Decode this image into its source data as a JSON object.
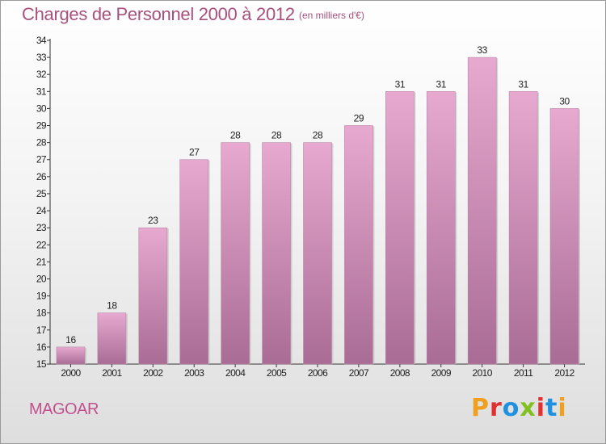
{
  "header": {
    "title": "Charges de Personnel 2000 à 2012",
    "unit": "(en milliers d'€)"
  },
  "footer": {
    "commune": "MAGOAR",
    "logo": "Proxiti",
    "logo_colors": [
      "#f0a020",
      "#e03030",
      "#2090e0",
      "#80c020",
      "#e03030",
      "#2090e0",
      "#f0a020"
    ]
  },
  "colors": {
    "bar_top": "#e7a9cf",
    "bar_bottom": "#a96c95",
    "title": "#a8507e"
  },
  "chart_data": {
    "type": "bar",
    "title": "Charges de Personnel 2000 à 2012",
    "categories": [
      "2000",
      "2001",
      "2002",
      "2003",
      "2004",
      "2005",
      "2006",
      "2007",
      "2008",
      "2009",
      "2010",
      "2011",
      "2012"
    ],
    "values": [
      16,
      18,
      23,
      27,
      28,
      28,
      28,
      29,
      31,
      31,
      33,
      31,
      30
    ],
    "yticks": [
      15,
      16,
      17,
      18,
      19,
      20,
      21,
      22,
      23,
      24,
      25,
      26,
      27,
      28,
      29,
      30,
      31,
      32,
      33,
      34
    ],
    "ylim": [
      15,
      34
    ],
    "xlabel": "",
    "ylabel": "",
    "grid": false,
    "legend": "none"
  }
}
